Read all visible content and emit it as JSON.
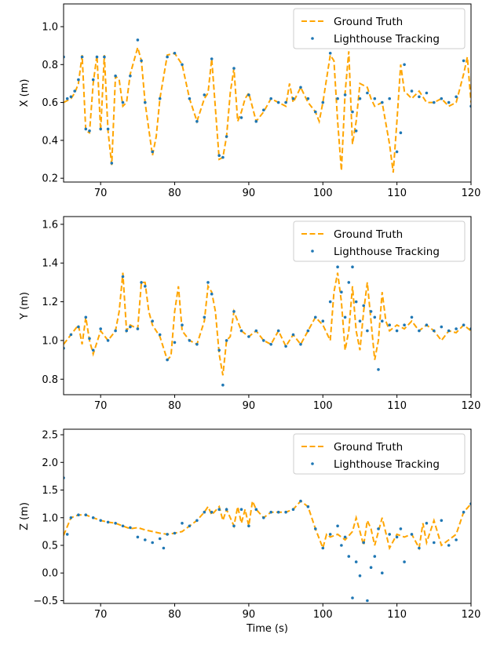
{
  "colors": {
    "ground_truth": "#ffa500",
    "tracking": "#1f77b4"
  },
  "chart_data": [
    {
      "type": "line",
      "title": "",
      "xlabel": "",
      "ylabel": "X (m)",
      "xlim": [
        65,
        120
      ],
      "ylim": [
        0.18,
        1.12
      ],
      "xticks": [
        70,
        80,
        90,
        100,
        110,
        120
      ],
      "yticks": [
        0.2,
        0.4,
        0.6,
        0.8,
        1.0
      ],
      "grid": false,
      "legend": "top-right",
      "series": [
        {
          "name": "Ground Truth",
          "style": "dashed",
          "x": [
            65,
            66,
            66.5,
            67,
            67.5,
            68,
            68.5,
            69,
            69.5,
            70,
            70.5,
            71,
            71.5,
            72,
            72.5,
            73,
            73.5,
            74,
            75,
            75.5,
            76,
            77,
            77.5,
            78,
            79,
            80,
            81,
            82,
            83,
            84,
            84.5,
            85,
            86,
            86.5,
            87,
            87.5,
            88,
            88.5,
            89,
            89.5,
            90,
            91,
            92,
            93,
            94,
            95,
            95.5,
            96,
            97,
            98,
            99,
            99.5,
            100,
            101,
            101.5,
            102,
            102.5,
            103,
            103.5,
            104,
            104.5,
            105,
            106,
            106.5,
            107,
            108,
            109,
            109.5,
            110,
            110.5,
            111,
            112,
            113,
            114,
            115,
            116,
            117,
            118,
            119,
            119.5,
            120
          ],
          "y": [
            0.6,
            0.62,
            0.65,
            0.7,
            0.85,
            0.45,
            0.44,
            0.7,
            0.85,
            0.45,
            0.85,
            0.45,
            0.27,
            0.74,
            0.72,
            0.58,
            0.6,
            0.75,
            0.89,
            0.82,
            0.6,
            0.32,
            0.42,
            0.62,
            0.85,
            0.86,
            0.8,
            0.62,
            0.5,
            0.62,
            0.65,
            0.83,
            0.3,
            0.31,
            0.42,
            0.65,
            0.78,
            0.5,
            0.55,
            0.62,
            0.65,
            0.5,
            0.55,
            0.62,
            0.6,
            0.58,
            0.7,
            0.6,
            0.68,
            0.6,
            0.55,
            0.5,
            0.6,
            0.85,
            0.82,
            0.5,
            0.24,
            0.65,
            0.87,
            0.38,
            0.5,
            0.7,
            0.68,
            0.62,
            0.58,
            0.6,
            0.38,
            0.23,
            0.5,
            0.8,
            0.66,
            0.62,
            0.66,
            0.6,
            0.6,
            0.62,
            0.58,
            0.6,
            0.75,
            0.84,
            0.6
          ]
        },
        {
          "name": "Lighthouse Tracking",
          "style": "scatter",
          "x": [
            65,
            65.5,
            66,
            66.5,
            67,
            67.5,
            68,
            68.5,
            69,
            69.5,
            70,
            70.5,
            71,
            71.5,
            72,
            73,
            74,
            75,
            75.5,
            76,
            77,
            78,
            79,
            80,
            81,
            82,
            83,
            84,
            85,
            86,
            86.5,
            87,
            88,
            89,
            90,
            91,
            92,
            93,
            94,
            95,
            96,
            97,
            98,
            99,
            100,
            101,
            102,
            103,
            104,
            104.5,
            105,
            106,
            107,
            108,
            109,
            110,
            110.5,
            111,
            112,
            113,
            114,
            115,
            116,
            117,
            118,
            119,
            120
          ],
          "y": [
            0.84,
            0.62,
            0.63,
            0.66,
            0.72,
            0.84,
            0.46,
            0.45,
            0.72,
            0.84,
            0.46,
            0.84,
            0.46,
            0.28,
            0.74,
            0.6,
            0.74,
            0.93,
            0.82,
            0.6,
            0.34,
            0.62,
            0.84,
            0.86,
            0.8,
            0.62,
            0.5,
            0.64,
            0.83,
            0.32,
            0.31,
            0.42,
            0.78,
            0.52,
            0.64,
            0.5,
            0.56,
            0.62,
            0.6,
            0.6,
            0.62,
            0.68,
            0.62,
            0.55,
            0.6,
            0.86,
            0.62,
            0.64,
            0.55,
            0.45,
            0.62,
            0.65,
            0.62,
            0.6,
            0.62,
            0.34,
            0.44,
            0.8,
            0.66,
            0.63,
            0.65,
            0.6,
            0.62,
            0.6,
            0.63,
            0.82,
            0.58
          ]
        }
      ]
    },
    {
      "type": "line",
      "title": "",
      "xlabel": "",
      "ylabel": "Y (m)",
      "xlim": [
        65,
        120
      ],
      "ylim": [
        0.72,
        1.64
      ],
      "xticks": [
        70,
        80,
        90,
        100,
        110,
        120
      ],
      "yticks": [
        0.8,
        1.0,
        1.2,
        1.4,
        1.6
      ],
      "grid": false,
      "legend": "top-right",
      "series": [
        {
          "name": "Ground Truth",
          "style": "dashed",
          "x": [
            65,
            66,
            67,
            67.5,
            68,
            68.5,
            69,
            70,
            71,
            72,
            72.5,
            73,
            73.5,
            74,
            75,
            75.5,
            76,
            76.5,
            77,
            78,
            79,
            79.5,
            80,
            80.5,
            81,
            82,
            83,
            84,
            84.5,
            85,
            85.5,
            86,
            86.5,
            87,
            87.5,
            88,
            89,
            90,
            91,
            92,
            93,
            94,
            95,
            96,
            97,
            98,
            99,
            100,
            101,
            101.5,
            102,
            102.5,
            103,
            103.5,
            104,
            104.5,
            105,
            105.5,
            106,
            106.5,
            107,
            107.5,
            108,
            108.5,
            109,
            110,
            111,
            112,
            113,
            114,
            115,
            116,
            117,
            118,
            119,
            120
          ],
          "y": [
            0.98,
            1.03,
            1.08,
            0.98,
            1.12,
            1.0,
            0.93,
            1.05,
            1.0,
            1.05,
            1.15,
            1.35,
            1.05,
            1.08,
            1.06,
            1.3,
            1.3,
            1.15,
            1.08,
            1.02,
            0.9,
            0.92,
            1.15,
            1.28,
            1.05,
            1.0,
            0.98,
            1.1,
            1.28,
            1.25,
            1.15,
            0.93,
            0.82,
            1.0,
            1.02,
            1.15,
            1.05,
            1.02,
            1.05,
            1.0,
            0.98,
            1.05,
            0.97,
            1.03,
            0.98,
            1.05,
            1.12,
            1.08,
            1.0,
            1.25,
            1.35,
            1.2,
            0.95,
            1.05,
            1.28,
            1.05,
            0.95,
            1.15,
            1.3,
            1.1,
            0.9,
            1.0,
            1.25,
            1.1,
            1.05,
            1.08,
            1.06,
            1.1,
            1.05,
            1.08,
            1.05,
            1.0,
            1.05,
            1.04,
            1.08,
            1.05
          ]
        },
        {
          "name": "Lighthouse Tracking",
          "style": "scatter",
          "x": [
            65,
            66,
            67,
            68,
            68.5,
            69,
            70,
            71,
            72,
            73,
            73.5,
            74,
            75,
            75.5,
            76,
            77,
            78,
            79,
            80,
            81,
            82,
            83,
            84,
            84.5,
            85,
            86,
            86.5,
            87,
            88,
            89,
            90,
            91,
            92,
            93,
            94,
            95,
            96,
            97,
            98,
            99,
            100,
            101,
            102,
            102.5,
            103,
            103.5,
            104,
            104.5,
            105,
            105.5,
            106,
            106.5,
            107,
            107.5,
            108,
            109,
            110,
            111,
            112,
            113,
            114,
            115,
            116,
            117,
            118,
            119,
            120
          ],
          "y": [
            0.96,
            1.03,
            1.07,
            1.12,
            1.01,
            0.95,
            1.06,
            1.0,
            1.05,
            1.33,
            1.05,
            1.07,
            1.06,
            1.3,
            1.28,
            1.1,
            1.03,
            0.9,
            0.99,
            1.08,
            1.0,
            0.98,
            1.12,
            1.3,
            1.24,
            0.95,
            0.77,
            1.0,
            1.15,
            1.05,
            1.02,
            1.05,
            1.0,
            0.98,
            1.05,
            0.97,
            1.03,
            0.98,
            1.05,
            1.12,
            1.1,
            1.2,
            1.38,
            1.25,
            1.12,
            1.3,
            1.38,
            1.2,
            1.1,
            1.18,
            1.05,
            1.15,
            1.12,
            0.85,
            1.1,
            1.08,
            1.05,
            1.08,
            1.12,
            1.05,
            1.08,
            1.05,
            1.07,
            1.05,
            1.06,
            1.08,
            1.06
          ]
        }
      ]
    },
    {
      "type": "line",
      "title": "",
      "xlabel": "Time (s)",
      "ylabel": "Z (m)",
      "xlim": [
        65,
        120
      ],
      "ylim": [
        -0.55,
        2.6
      ],
      "xticks": [
        70,
        80,
        90,
        100,
        110,
        120
      ],
      "yticks": [
        -0.5,
        0.0,
        0.5,
        1.0,
        1.5,
        2.0,
        2.5
      ],
      "grid": false,
      "legend": "top-right",
      "series": [
        {
          "name": "Ground Truth",
          "style": "dashed",
          "x": [
            65,
            66,
            67,
            68,
            69,
            70,
            71,
            72,
            73,
            74,
            75,
            76,
            77,
            78,
            79,
            80,
            81,
            82,
            83,
            84,
            84.5,
            85,
            86,
            86.5,
            87,
            88,
            88.5,
            89,
            89.5,
            90,
            90.5,
            91,
            92,
            93,
            94,
            95,
            96,
            97,
            98,
            99,
            100,
            100.5,
            101,
            102,
            103,
            104,
            104.5,
            105,
            105.5,
            106,
            106.5,
            107,
            108,
            109,
            110,
            111,
            112,
            113,
            113.5,
            114,
            115,
            116,
            117,
            118,
            119,
            120
          ],
          "y": [
            0.68,
            1.0,
            1.05,
            1.05,
            1.0,
            0.95,
            0.92,
            0.9,
            0.85,
            0.8,
            0.82,
            0.78,
            0.75,
            0.72,
            0.7,
            0.72,
            0.75,
            0.85,
            0.95,
            1.1,
            1.2,
            1.05,
            1.2,
            0.95,
            1.15,
            0.85,
            1.2,
            0.9,
            1.15,
            0.85,
            1.3,
            1.15,
            1.0,
            1.1,
            1.1,
            1.1,
            1.15,
            1.3,
            1.2,
            0.8,
            0.45,
            0.7,
            0.65,
            0.7,
            0.6,
            0.75,
            1.0,
            0.75,
            0.5,
            0.95,
            0.8,
            0.5,
            1.0,
            0.45,
            0.7,
            0.65,
            0.7,
            0.45,
            0.9,
            0.55,
            0.95,
            0.5,
            0.6,
            0.7,
            1.1,
            1.25
          ]
        },
        {
          "name": "Lighthouse Tracking",
          "style": "scatter",
          "x": [
            65,
            65.5,
            66,
            67,
            68,
            69,
            70,
            71,
            72,
            73,
            74,
            75,
            76,
            77,
            78,
            78.5,
            79,
            80,
            81,
            82,
            83,
            84,
            85,
            86,
            87,
            88,
            89,
            90,
            91,
            92,
            93,
            94,
            95,
            96,
            97,
            98,
            99,
            100,
            101,
            102,
            102.5,
            103,
            103.5,
            104,
            104.5,
            105,
            105.5,
            106,
            106.5,
            107,
            107.5,
            108,
            109,
            110,
            110.5,
            111,
            112,
            113,
            114,
            115,
            116,
            117,
            118,
            119,
            120
          ],
          "y": [
            1.72,
            0.7,
            1.0,
            1.05,
            1.05,
            1.0,
            0.95,
            0.92,
            0.9,
            0.85,
            0.82,
            0.65,
            0.6,
            0.55,
            0.62,
            0.45,
            0.7,
            0.72,
            0.9,
            0.85,
            0.95,
            1.1,
            1.1,
            1.15,
            1.15,
            0.85,
            1.15,
            0.85,
            1.15,
            1.0,
            1.1,
            1.1,
            1.1,
            1.15,
            1.3,
            1.2,
            0.8,
            0.45,
            0.7,
            0.85,
            0.5,
            0.65,
            0.3,
            -0.45,
            0.2,
            -0.05,
            0.55,
            -0.5,
            0.1,
            0.3,
            0.8,
            0.0,
            0.7,
            0.65,
            0.8,
            0.2,
            0.7,
            0.45,
            0.9,
            0.55,
            0.95,
            0.5,
            0.6,
            1.1,
            1.25
          ]
        }
      ]
    }
  ]
}
